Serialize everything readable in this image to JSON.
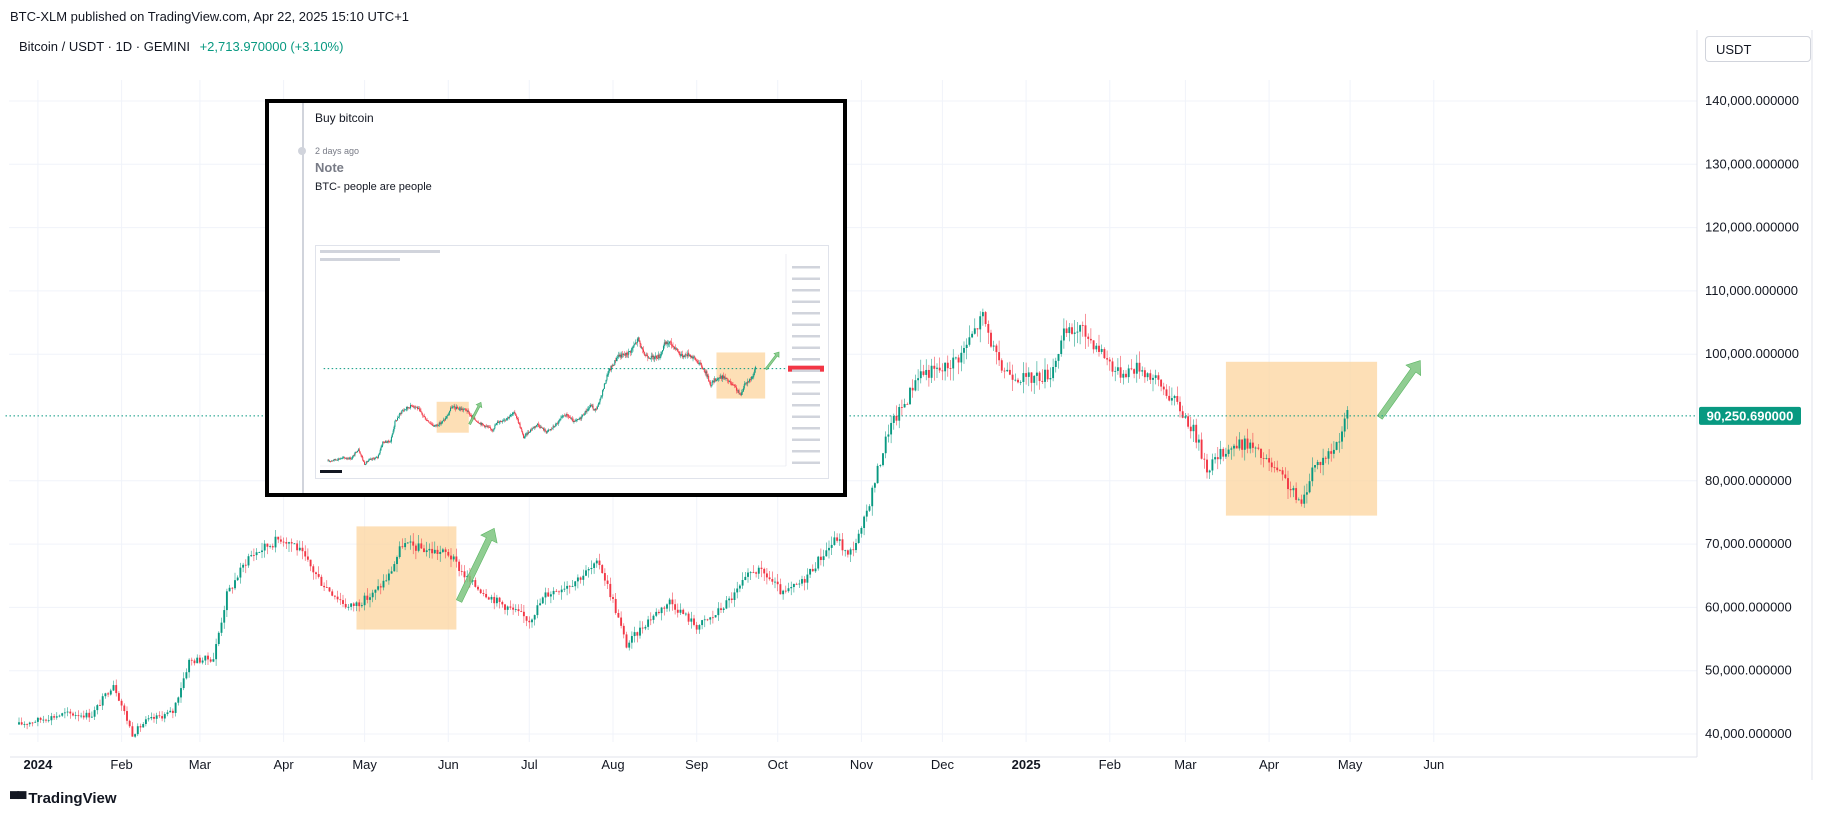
{
  "header": {
    "published": "BTC-XLM published on TradingView.com, Apr 22, 2025 15:10 UTC+1",
    "symbol": "Bitcoin / USDT · 1D · GEMINI",
    "change": "+2,713.970000 (+3.10%)",
    "currency": "USDT"
  },
  "footer": {
    "brand": "TradingView",
    "logo": "▀▀"
  },
  "note": {
    "title": "Buy bitcoin",
    "time": "2 days ago",
    "label": "Note",
    "text": "BTC- people are people"
  },
  "colors": {
    "up": "#089981",
    "down": "#f23645",
    "box": "#fcd49e",
    "arrow": "#7cc47f",
    "price_label": "#089981"
  },
  "chart_data": {
    "type": "candlestick",
    "title": "Bitcoin / USDT · 1D · GEMINI",
    "ylabel": "USDT",
    "ylim": [
      37000,
      148000
    ],
    "yticks": [
      "140,000.000000",
      "130,000.000000",
      "120,000.000000",
      "110,000.000000",
      "100,000.000000",
      "80,000.000000",
      "70,000.000000",
      "60,000.000000",
      "50,000.000000",
      "40,000.000000"
    ],
    "ytick_values": [
      140000,
      130000,
      120000,
      110000,
      100000,
      80000,
      70000,
      60000,
      50000,
      40000
    ],
    "current_price": 90250.69,
    "current_price_label": "90,250.690000",
    "xticks": [
      "2024",
      "Feb",
      "Mar",
      "Apr",
      "May",
      "Jun",
      "Jul",
      "Aug",
      "Sep",
      "Oct",
      "Nov",
      "Dec",
      "2025",
      "Feb",
      "Mar",
      "Apr",
      "May",
      "Jun"
    ],
    "xtick_days": [
      0,
      31,
      60,
      91,
      121,
      152,
      182,
      213,
      244,
      274,
      305,
      335,
      366,
      397,
      425,
      456,
      486,
      517
    ],
    "price_path": [
      [
        -7,
        41500
      ],
      [
        0,
        42200
      ],
      [
        10,
        43200
      ],
      [
        20,
        43000
      ],
      [
        28,
        48000
      ],
      [
        35,
        40000
      ],
      [
        40,
        42000
      ],
      [
        50,
        43500
      ],
      [
        56,
        51500
      ],
      [
        65,
        52000
      ],
      [
        70,
        62000
      ],
      [
        78,
        68000
      ],
      [
        90,
        71000
      ],
      [
        95,
        70000
      ],
      [
        105,
        64000
      ],
      [
        115,
        60000
      ],
      [
        120,
        61000
      ],
      [
        124,
        62000
      ],
      [
        130,
        65000
      ],
      [
        135,
        70000
      ],
      [
        145,
        69000
      ],
      [
        152,
        68500
      ],
      [
        160,
        64000
      ],
      [
        170,
        61000
      ],
      [
        182,
        58000
      ],
      [
        188,
        62000
      ],
      [
        198,
        64000
      ],
      [
        208,
        67000
      ],
      [
        213,
        61000
      ],
      [
        218,
        54000
      ],
      [
        226,
        58000
      ],
      [
        234,
        61000
      ],
      [
        244,
        57000
      ],
      [
        250,
        58500
      ],
      [
        258,
        62000
      ],
      [
        265,
        66000
      ],
      [
        270,
        65000
      ],
      [
        276,
        62000
      ],
      [
        283,
        64000
      ],
      [
        290,
        68000
      ],
      [
        296,
        71000
      ],
      [
        300,
        68000
      ],
      [
        305,
        72000
      ],
      [
        310,
        80000
      ],
      [
        315,
        88000
      ],
      [
        322,
        93000
      ],
      [
        326,
        97000
      ],
      [
        335,
        97500
      ],
      [
        342,
        100000
      ],
      [
        350,
        106000
      ],
      [
        356,
        98000
      ],
      [
        366,
        96000
      ],
      [
        375,
        97000
      ],
      [
        380,
        103000
      ],
      [
        386,
        104000
      ],
      [
        393,
        101000
      ],
      [
        400,
        97000
      ],
      [
        408,
        98000
      ],
      [
        415,
        95500
      ],
      [
        422,
        92000
      ],
      [
        428,
        88000
      ],
      [
        433,
        82000
      ],
      [
        440,
        85000
      ],
      [
        448,
        86000
      ],
      [
        455,
        83000
      ],
      [
        462,
        80000
      ],
      [
        468,
        76000
      ],
      [
        472,
        82000
      ],
      [
        480,
        85000
      ],
      [
        485,
        90250
      ]
    ],
    "boxes": [
      {
        "x0": 118,
        "x1": 155,
        "y0": 56500,
        "y1": 72800
      },
      {
        "x0": 440,
        "x1": 496,
        "y0": 74500,
        "y1": 98800
      }
    ],
    "arrows": [
      {
        "x0": 156,
        "y0": 61000,
        "x1": 169,
        "y1": 72500
      },
      {
        "x0": 497,
        "y0": 90000,
        "x1": 512,
        "y1": 99000
      }
    ]
  }
}
